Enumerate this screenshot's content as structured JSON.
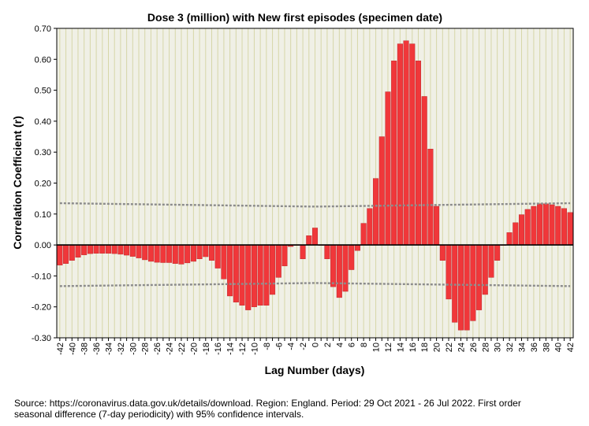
{
  "chart_data": {
    "type": "bar",
    "title": "Dose 3 (million) with New first episodes (specimen date)",
    "xlabel": "Lag Number (days)",
    "ylabel": "Correlation Coefficient (r)",
    "ylim": [
      -0.3,
      0.7
    ],
    "y_ticks": [
      "-0.30",
      "-0.20",
      "-0.10",
      "0.00",
      "0.10",
      "0.20",
      "0.30",
      "0.40",
      "0.50",
      "0.60",
      "0.70"
    ],
    "x_tick_labels": [
      "-42",
      "-40",
      "-38",
      "-36",
      "-34",
      "-32",
      "-30",
      "-28",
      "-26",
      "-24",
      "-22",
      "-20",
      "-18",
      "-16",
      "-14",
      "-12",
      "-10",
      "-8",
      "-6",
      "-4",
      "-2",
      "0",
      "2",
      "4",
      "6",
      "8",
      "10",
      "12",
      "14",
      "16",
      "18",
      "20",
      "22",
      "24",
      "26",
      "28",
      "30",
      "32",
      "34",
      "36",
      "38",
      "40",
      "42"
    ],
    "lags": [
      -42,
      -41,
      -40,
      -39,
      -38,
      -37,
      -36,
      -35,
      -34,
      -33,
      -32,
      -31,
      -30,
      -29,
      -28,
      -27,
      -26,
      -25,
      -24,
      -23,
      -22,
      -21,
      -20,
      -19,
      -18,
      -17,
      -16,
      -15,
      -14,
      -13,
      -12,
      -11,
      -10,
      -9,
      -8,
      -7,
      -6,
      -5,
      -4,
      -3,
      -2,
      -1,
      0,
      1,
      2,
      3,
      4,
      5,
      6,
      7,
      8,
      9,
      10,
      11,
      12,
      13,
      14,
      15,
      16,
      17,
      18,
      19,
      20,
      21,
      22,
      23,
      24,
      25,
      26,
      27,
      28,
      29,
      30,
      31,
      32,
      33,
      34,
      35,
      36,
      37,
      38,
      39,
      40,
      41,
      42
    ],
    "values": [
      -0.065,
      -0.06,
      -0.05,
      -0.04,
      -0.032,
      -0.028,
      -0.027,
      -0.027,
      -0.027,
      -0.028,
      -0.03,
      -0.033,
      -0.037,
      -0.042,
      -0.048,
      -0.053,
      -0.056,
      -0.057,
      -0.057,
      -0.06,
      -0.062,
      -0.058,
      -0.053,
      -0.045,
      -0.038,
      -0.05,
      -0.075,
      -0.11,
      -0.165,
      -0.185,
      -0.195,
      -0.21,
      -0.2,
      -0.195,
      -0.195,
      -0.16,
      -0.105,
      -0.068,
      -0.005,
      0.0,
      -0.045,
      0.03,
      0.055,
      0.0,
      -0.045,
      -0.135,
      -0.17,
      -0.15,
      -0.08,
      -0.018,
      0.07,
      0.118,
      0.215,
      0.35,
      0.495,
      0.595,
      0.65,
      0.66,
      0.65,
      0.595,
      0.48,
      0.31,
      0.125,
      -0.05,
      -0.175,
      -0.25,
      -0.275,
      -0.275,
      -0.245,
      -0.21,
      -0.16,
      -0.105,
      -0.05,
      0.0,
      0.04,
      0.072,
      0.098,
      0.115,
      0.125,
      0.133,
      0.133,
      0.13,
      0.125,
      0.118,
      0.105
    ],
    "ci_upper": [
      0.135,
      0.124,
      0.135
    ],
    "ci_lower": [
      -0.133,
      -0.123,
      -0.133
    ],
    "bar_color": "#f0373a",
    "bar_edge_color": "#b31f22",
    "plot_background": "#f0f0e6",
    "grid_color": "#d6d6a8",
    "ci_line_color": "#8c8c8c"
  },
  "footnote": {
    "line1": "Source: https://coronavirus.data.gov.uk/details/download. Region: England. Period: 29 Oct 2021 - 26 Jul 2022. First order",
    "line2": "seasonal difference (7-day periodicity) with 95% confidence intervals."
  }
}
